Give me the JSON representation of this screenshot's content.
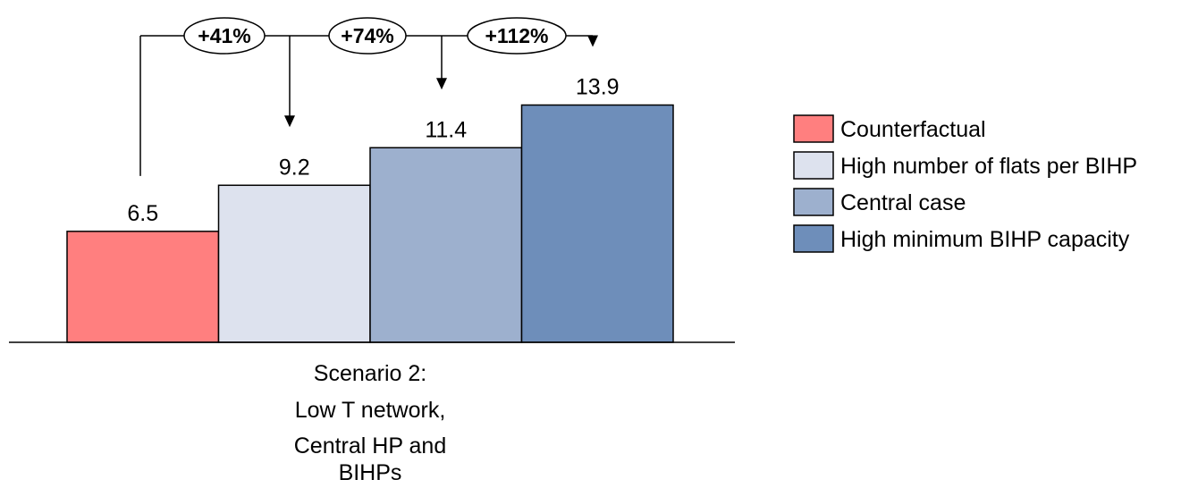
{
  "chart_data": {
    "type": "bar",
    "categories": [
      "Scenario 2:",
      "Low T network,",
      "Central HP and",
      "BIHPs"
    ],
    "series": [
      {
        "name": "Counterfactual",
        "value": 6.5,
        "label": "6.5",
        "color": "#FF7F7F"
      },
      {
        "name": "High number of flats per BIHP",
        "value": 9.2,
        "label": "9.2",
        "color": "#DDE2EE"
      },
      {
        "name": "Central case",
        "value": 11.4,
        "label": "11.4",
        "color": "#9DB0CE"
      },
      {
        "name": "High minimum BIHP capacity",
        "value": 13.9,
        "label": "13.9",
        "color": "#6E8EBA"
      }
    ],
    "changes": [
      {
        "from": 0,
        "to": 1,
        "label": "+41%"
      },
      {
        "from": 0,
        "to": 2,
        "label": "+74%"
      },
      {
        "from": 0,
        "to": 3,
        "label": "+112%"
      }
    ],
    "ylim": [
      0,
      16
    ],
    "legend": "right",
    "grid": false
  }
}
